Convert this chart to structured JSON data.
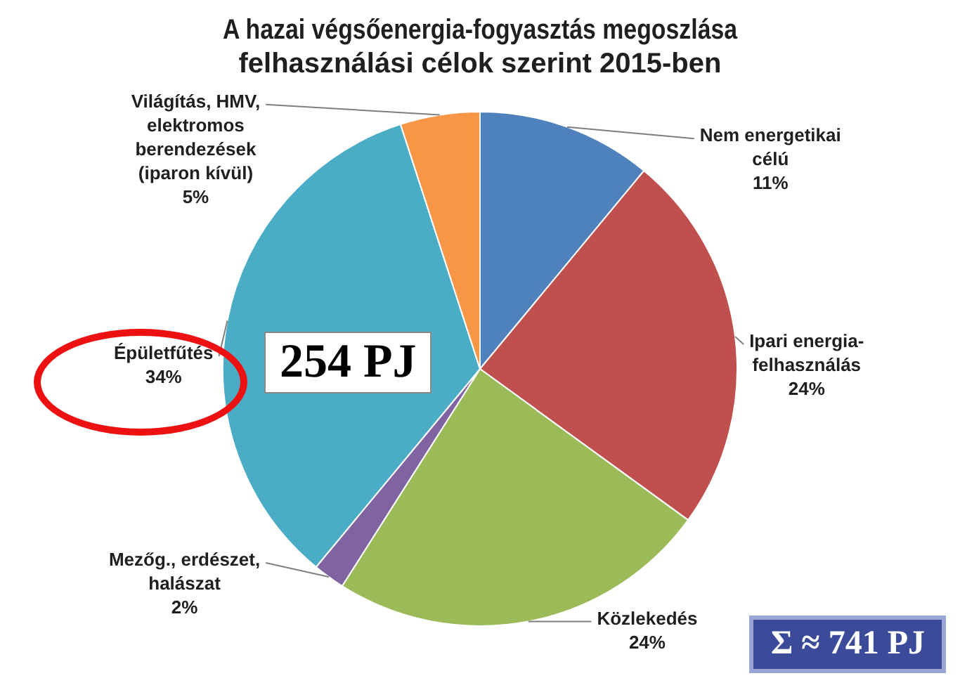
{
  "chart_data": {
    "type": "pie",
    "title": "A hazai végsőenergia-fogyasztás megoszlása felhasználási célok szerint 2015-ben",
    "categories": [
      "Nem energetikai célú",
      "Ipari energia-felhasználás",
      "Közlekedés",
      "Mezőg., erdészet, halászat",
      "Épületfűtés",
      "Világítás, HMV, elektromos berendezések (iparon kívül)"
    ],
    "values": [
      11,
      24,
      24,
      2,
      34,
      5
    ],
    "colors": [
      "#4f81bd",
      "#c0504d",
      "#9bbb59",
      "#8064a2",
      "#4bacc6",
      "#f79646"
    ],
    "value_labels": [
      "11%",
      "24%",
      "24%",
      "2%",
      "34%",
      "5%"
    ],
    "legend": false,
    "annotations": [
      "254 PJ",
      "Σ ≈ 741 PJ"
    ]
  }
}
